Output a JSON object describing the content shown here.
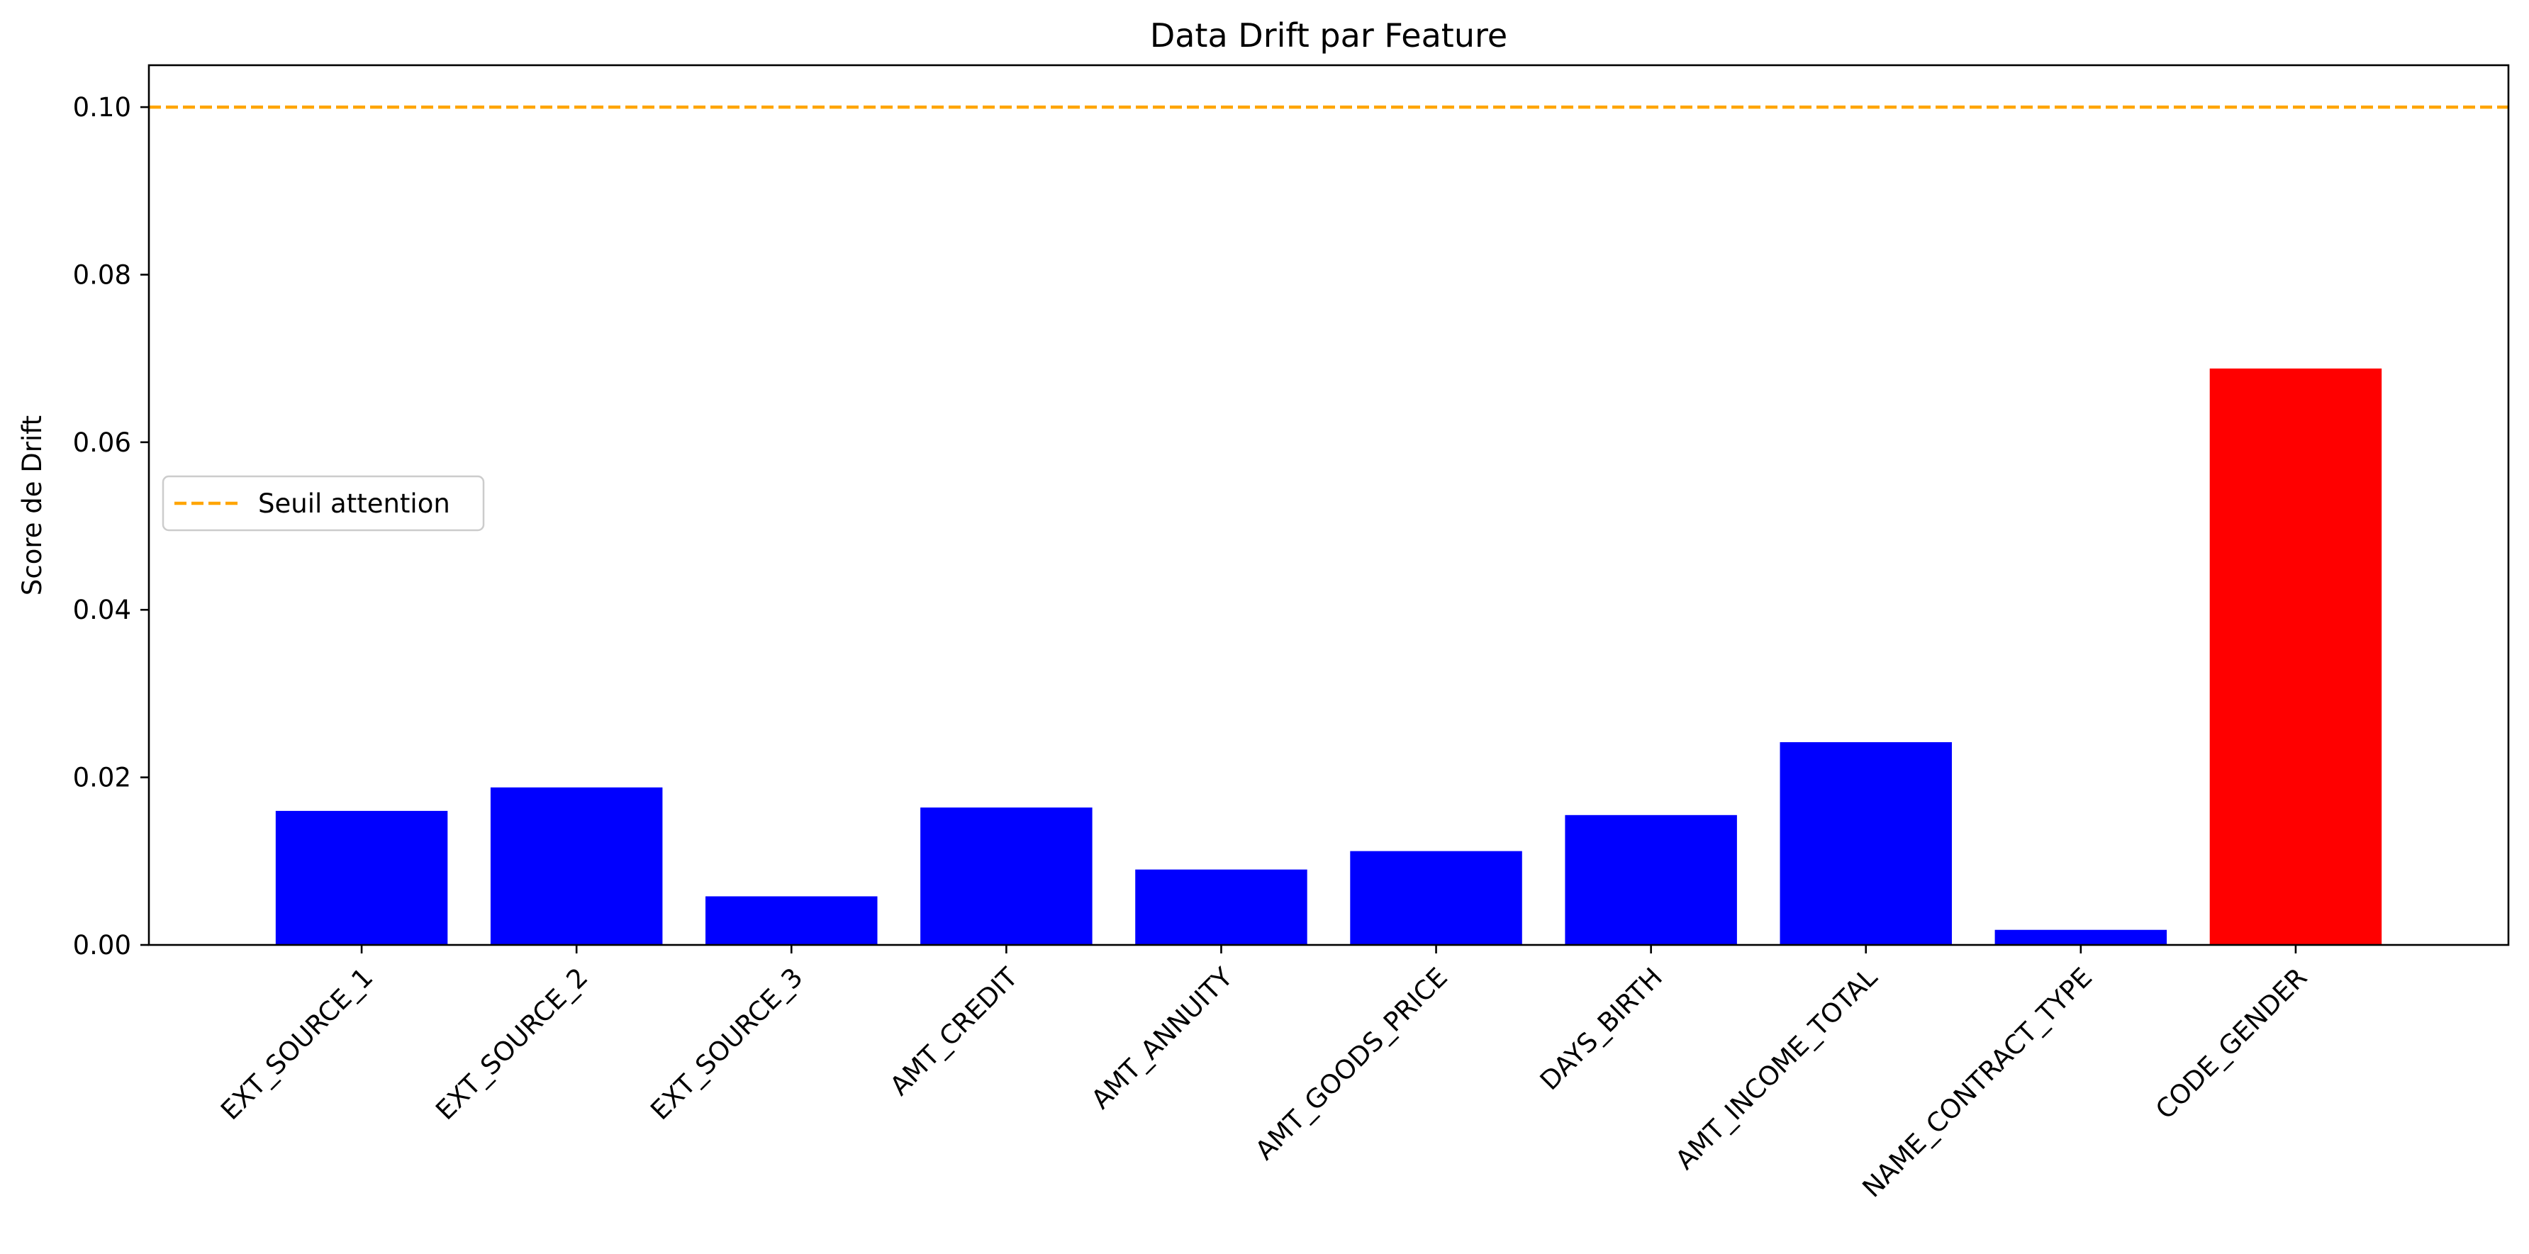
{
  "chart_data": {
    "type": "bar",
    "title": "Data Drift par Feature",
    "xlabel": "",
    "ylabel": "Score de Drift",
    "ylim": [
      0,
      0.105
    ],
    "yticks": [
      0.0,
      0.02,
      0.04,
      0.06,
      0.08,
      0.1
    ],
    "ytick_labels": [
      "0.00",
      "0.02",
      "0.04",
      "0.06",
      "0.08",
      "0.10"
    ],
    "categories": [
      "EXT_SOURCE_1",
      "EXT_SOURCE_2",
      "EXT_SOURCE_3",
      "AMT_CREDIT",
      "AMT_ANNUITY",
      "AMT_GOODS_PRICE",
      "DAYS_BIRTH",
      "AMT_INCOME_TOTAL",
      "NAME_CONTRACT_TYPE",
      "CODE_GENDER"
    ],
    "values": [
      0.016,
      0.0188,
      0.0058,
      0.0164,
      0.009,
      0.0112,
      0.0155,
      0.0242,
      0.0018,
      0.0688
    ],
    "bar_colors": [
      "#0000ff",
      "#0000ff",
      "#0000ff",
      "#0000ff",
      "#0000ff",
      "#0000ff",
      "#0000ff",
      "#0000ff",
      "#0000ff",
      "#ff0000"
    ],
    "threshold": {
      "value": 0.1,
      "label": "Seuil attention",
      "color": "#ffa500",
      "style": "dashed"
    },
    "legend": {
      "placement": "center-left",
      "entries": [
        "Seuil attention"
      ]
    },
    "grid": false
  }
}
